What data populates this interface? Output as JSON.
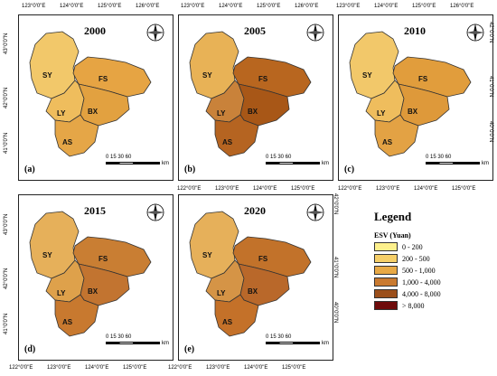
{
  "panels": [
    {
      "year": "2000",
      "label": "(a)",
      "colors": {
        "sy": "#f2c86a",
        "fs": "#e6a443",
        "ly": "#efbd5d",
        "bx": "#e2a140",
        "as": "#e5a647"
      }
    },
    {
      "year": "2005",
      "label": "(b)",
      "colors": {
        "sy": "#e8b256",
        "fs": "#b8661f",
        "ly": "#c9823a",
        "bx": "#a85717",
        "as": "#b56421"
      }
    },
    {
      "year": "2010",
      "label": "(c)",
      "colors": {
        "sy": "#f2c86a",
        "fs": "#e19d3c",
        "ly": "#efbd5d",
        "bx": "#de993a",
        "as": "#e3a244"
      }
    },
    {
      "year": "2015",
      "label": "(d)",
      "colors": {
        "sy": "#e6b05a",
        "fs": "#c97e33",
        "ly": "#dea14b",
        "bx": "#c27430",
        "as": "#c8792f"
      }
    },
    {
      "year": "2020",
      "label": "(e)",
      "colors": {
        "sy": "#e6b05a",
        "fs": "#c2722a",
        "ly": "#d59446",
        "bx": "#b9682a",
        "as": "#c47129"
      }
    }
  ],
  "regions": {
    "sy": "SY",
    "fs": "FS",
    "ly": "LY",
    "bx": "BX",
    "as": "AS"
  },
  "scale": {
    "ticks": "0 15 30      60",
    "unit": "km"
  },
  "top_ticks_row1": [
    "123°0'0\"E",
    "124°0'0\"E",
    "125°0'0\"E",
    "126°0'0\"E"
  ],
  "top_ticks_row1_right": [
    "123°0'0\"E",
    "124°0'0\"E",
    "125°0'0\"E",
    "126°0'0\"E"
  ],
  "bottom_ticks_row1_right": [
    "122°0'0\"E",
    "123°0'0\"E",
    "124°0'0\"E",
    "125°0'0\"E"
  ],
  "top_ticks_row2_mid": [
    "122°0'0\"E",
    "123°0'0\"E",
    "124°0'0\"E",
    "125°0'0\"E"
  ],
  "bottom_ticks_row2": [
    "122°0'0\"E",
    "123°0'0\"E",
    "124°0'0\"E",
    "125°0'0\"E"
  ],
  "bottom_ticks_row2_mid": [
    "122°0'0\"E",
    "123°0'0\"E",
    "124°0'0\"E",
    "125°0'0\"E"
  ],
  "left_ticks": [
    "43°0'0\"N",
    "42°0'0\"N",
    "41°0'0\"N"
  ],
  "right_ticks": [
    "42°0'0\"N",
    "41°0'0\"N",
    "40°0'0\"N"
  ],
  "legend": {
    "title": "Legend",
    "subtitle": "ESV (Yuan)",
    "items": [
      {
        "label": "0 - 200",
        "color": "#fdf08c"
      },
      {
        "label": "200 - 500",
        "color": "#f6cf68"
      },
      {
        "label": "500 - 1,000",
        "color": "#e8a945"
      },
      {
        "label": "1,000 - 4,000",
        "color": "#c97a30"
      },
      {
        "label": "4,000 - 8,000",
        "color": "#9b4f1b"
      },
      {
        "label": "> 8,000",
        "color": "#6e0b0b"
      }
    ]
  }
}
